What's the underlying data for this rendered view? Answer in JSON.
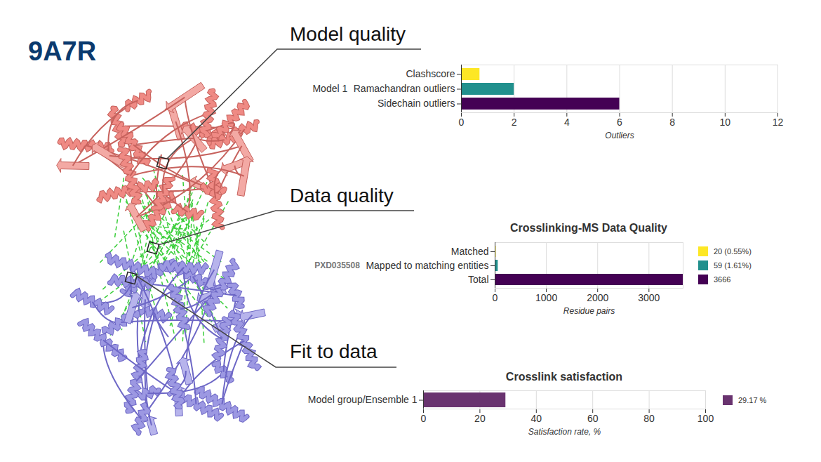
{
  "header": {
    "title": "9A7R"
  },
  "callouts": [
    "Model quality",
    "Data quality",
    "Fit to data"
  ],
  "chart_data": [
    {
      "type": "bar",
      "orientation": "horizontal",
      "ylabel": "Model 1",
      "categories": [
        "Clashscore",
        "Ramachandran outliers",
        "Sidechain outliers"
      ],
      "values": [
        0.7,
        2,
        6
      ],
      "colors": [
        "#fde725",
        "#21908d",
        "#440154"
      ],
      "xlabel": "Outliers",
      "xlim": [
        0,
        12
      ],
      "xticks": [
        0,
        2,
        4,
        6,
        8,
        10,
        12
      ],
      "grid": true
    },
    {
      "type": "bar",
      "orientation": "horizontal",
      "title": "Crosslinking-MS Data Quality",
      "ylabel": "PXD035508",
      "categories": [
        "Matched",
        "Mapped to matching entities",
        "Total"
      ],
      "values": [
        20,
        59,
        3666
      ],
      "value_labels": [
        "20 (0.55%)",
        "59 (1.61%)",
        "3666"
      ],
      "colors": [
        "#fde725",
        "#21908d",
        "#440154"
      ],
      "xlabel": "Residue pairs",
      "xlim": [
        0,
        3666
      ],
      "xticks": [
        0,
        1000,
        2000,
        3000
      ],
      "grid": true,
      "legend": "right"
    },
    {
      "type": "bar",
      "orientation": "horizontal",
      "title": "Crosslink satisfaction",
      "categories": [
        "Model group/Ensemble 1"
      ],
      "values": [
        29.17
      ],
      "value_labels": [
        "29.17 %"
      ],
      "colors": [
        "#69336f"
      ],
      "xlabel": "Satisfaction rate, %",
      "xlim": [
        0,
        100
      ],
      "xticks": [
        0,
        20,
        40,
        60,
        80,
        100
      ],
      "grid": true,
      "legend": "right"
    }
  ]
}
